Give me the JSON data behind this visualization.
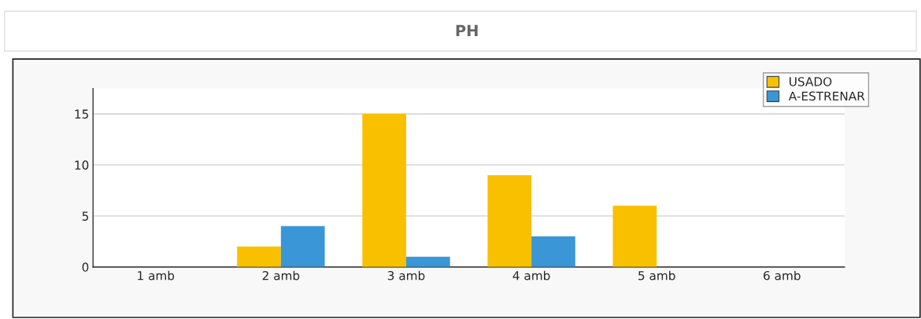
{
  "chart_data": {
    "type": "bar",
    "title": "PH",
    "categories": [
      "1 amb",
      "2 amb",
      "3 amb",
      "4 amb",
      "5 amb",
      "6 amb"
    ],
    "series": [
      {
        "name": "USADO",
        "color": "#f9c000",
        "values": [
          0,
          2,
          15,
          9,
          6,
          0
        ]
      },
      {
        "name": "A-ESTRENAR",
        "color": "#3a96d6",
        "values": [
          0,
          4,
          1,
          3,
          0,
          0
        ]
      }
    ],
    "ylim": [
      0,
      17.5
    ],
    "yticks": [
      0,
      5,
      10,
      15
    ],
    "grid": "y",
    "legend": "top right"
  }
}
